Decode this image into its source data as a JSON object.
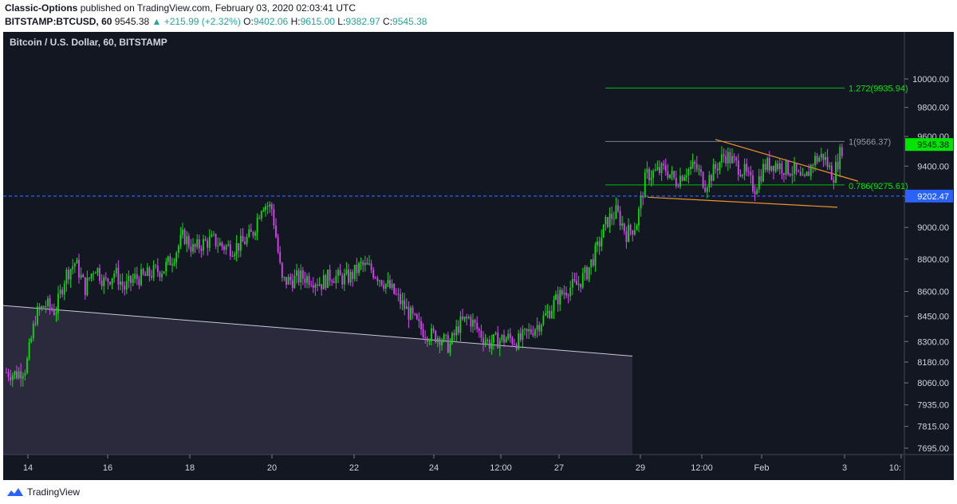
{
  "header": {
    "author": "Classic-Options",
    "published_text": "published on TradingView.com, February 03, 2020 02:03:41 UTC",
    "symbol": "BITSTAMP:BTCUSD, 60",
    "last": "9545.38",
    "change": "▲ +215.99 (+2.32%)",
    "o_label": "O:",
    "o_value": "9402.06",
    "h_label": "H:",
    "h_value": "9615.00",
    "l_label": "L:",
    "l_value": "9382.97",
    "c_label": "C:",
    "c_value": "9545.38"
  },
  "chart": {
    "legend_title": "Bitcoin / U.S. Dollar, 60, BITSTAMP"
  },
  "footer": {
    "brand": "TradingView"
  },
  "chart_data": {
    "type": "candlestick",
    "title": "Bitcoin / U.S. Dollar, 60, BITSTAMP",
    "y_ticks": [
      "10000.00",
      "9800.00",
      "9600.00",
      "9400.00",
      "9200.00",
      "9000.00",
      "8800.00",
      "8600.00",
      "8450.00",
      "8300.00",
      "8180.00",
      "8060.00",
      "7935.00",
      "7815.00",
      "7695.00"
    ],
    "x_ticks": [
      "14",
      "16",
      "18",
      "20",
      "22",
      "24",
      "12:00",
      "27",
      "29",
      "12:00",
      "Feb",
      "3",
      "10:"
    ],
    "y_scale": "log",
    "colors": {
      "bg": "#131722",
      "up": "#00e400",
      "down": "#e040fb",
      "price_tag": "#00e400",
      "level_line": "#2962ff",
      "fib": "#00e400",
      "wedge": "#f0932b",
      "zone": "#2d2d40"
    },
    "current_price": "9545.38",
    "level_line": {
      "value": 9202.47,
      "label": "9202.47"
    },
    "fib_levels": [
      {
        "label": "1.272(9935.94)",
        "value": 9935.94
      },
      {
        "label": "1(9566.37)",
        "value": 9566.37
      },
      {
        "label": "0.786(9275.61)",
        "value": 9275.61
      }
    ],
    "price_path": [
      [
        0,
        8120
      ],
      [
        1,
        8110
      ],
      [
        2,
        8150
      ],
      [
        3,
        8460
      ],
      [
        4,
        8520
      ],
      [
        5,
        8480
      ],
      [
        6,
        8700
      ],
      [
        7,
        8780
      ],
      [
        8,
        8620
      ],
      [
        9,
        8760
      ],
      [
        10,
        8650
      ],
      [
        11,
        8720
      ],
      [
        12,
        8620
      ],
      [
        13,
        8680
      ],
      [
        14,
        8690
      ],
      [
        15,
        8720
      ],
      [
        16,
        8740
      ],
      [
        17,
        8820
      ],
      [
        18,
        8950
      ],
      [
        19,
        8860
      ],
      [
        20,
        8900
      ],
      [
        21,
        8920
      ],
      [
        22,
        8880
      ],
      [
        23,
        8870
      ],
      [
        24,
        8900
      ],
      [
        25,
        8960
      ],
      [
        26,
        9160
      ],
      [
        27,
        9120
      ],
      [
        28,
        8660
      ],
      [
        29,
        8670
      ],
      [
        30,
        8690
      ],
      [
        31,
        8680
      ],
      [
        32,
        8650
      ],
      [
        33,
        8700
      ],
      [
        34,
        8680
      ],
      [
        35,
        8690
      ],
      [
        36,
        8760
      ],
      [
        37,
        8740
      ],
      [
        38,
        8680
      ],
      [
        39,
        8620
      ],
      [
        40,
        8540
      ],
      [
        41,
        8460
      ],
      [
        42,
        8380
      ],
      [
        43,
        8340
      ],
      [
        44,
        8330
      ],
      [
        45,
        8270
      ],
      [
        46,
        8400
      ],
      [
        47,
        8440
      ],
      [
        48,
        8360
      ],
      [
        49,
        8290
      ],
      [
        50,
        8310
      ],
      [
        51,
        8320
      ],
      [
        52,
        8300
      ],
      [
        53,
        8350
      ],
      [
        54,
        8400
      ],
      [
        55,
        8470
      ],
      [
        56,
        8560
      ],
      [
        57,
        8620
      ],
      [
        58,
        8640
      ],
      [
        59,
        8720
      ],
      [
        60,
        8860
      ],
      [
        61,
        9040
      ],
      [
        62,
        9100
      ],
      [
        63,
        8960
      ],
      [
        64,
        9020
      ],
      [
        65,
        9340
      ],
      [
        66,
        9360
      ],
      [
        67,
        9380
      ],
      [
        68,
        9300
      ],
      [
        69,
        9370
      ],
      [
        70,
        9400
      ],
      [
        71,
        9280
      ],
      [
        72,
        9380
      ],
      [
        73,
        9480
      ],
      [
        74,
        9420
      ],
      [
        75,
        9360
      ],
      [
        76,
        9250
      ],
      [
        77,
        9400
      ],
      [
        78,
        9420
      ],
      [
        79,
        9390
      ],
      [
        80,
        9370
      ],
      [
        81,
        9280
      ],
      [
        82,
        9440
      ],
      [
        83,
        9470
      ],
      [
        84,
        9330
      ],
      [
        85,
        9545
      ]
    ]
  }
}
